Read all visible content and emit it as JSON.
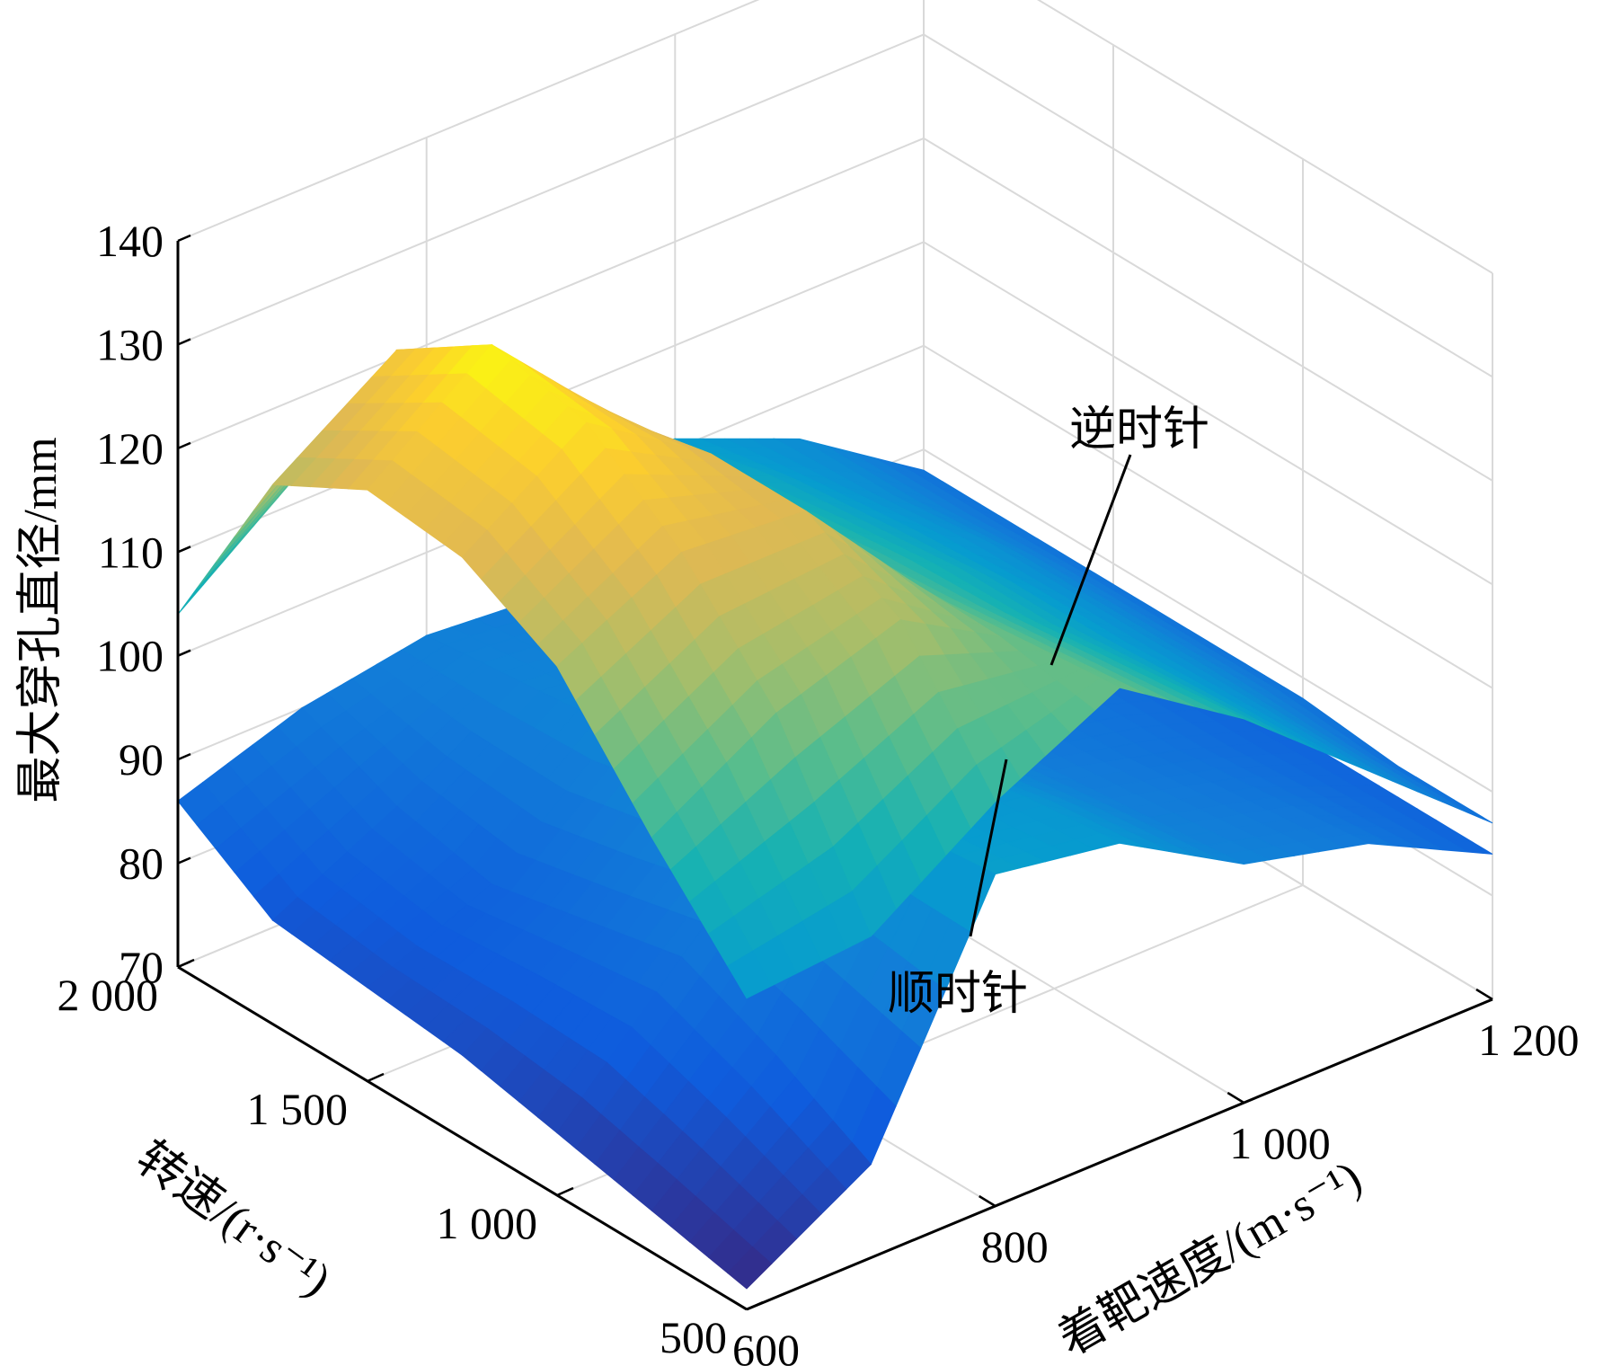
{
  "chart_data": {
    "type": "surface",
    "title": "",
    "zlabel": "最大穿孔直径/mm",
    "xlabel": "着靶速度/(m·s⁻¹)",
    "ylabel": "转速/(r·s⁻¹)",
    "xlim": [
      600,
      1200
    ],
    "ylim": [
      500,
      2000
    ],
    "zlim": [
      70,
      140
    ],
    "x_ticks": [
      600,
      800,
      1000,
      1200
    ],
    "x_tick_labels": [
      "600",
      "800",
      "1 000",
      "1 200"
    ],
    "y_ticks": [
      500,
      1000,
      1500,
      2000
    ],
    "y_tick_labels": [
      "500",
      "1 000",
      "1 500",
      "2 000"
    ],
    "z_ticks": [
      70,
      80,
      90,
      100,
      110,
      120,
      130,
      140
    ],
    "z_tick_labels": [
      "70",
      "80",
      "90",
      "100",
      "110",
      "120",
      "130",
      "140"
    ],
    "grid": true,
    "colormap": "parula",
    "colors": {
      "low": "#352a87",
      "mid": "#26b5a6",
      "high": "#f9e21b",
      "grid": "#d9d9d9",
      "axis": "#000000"
    },
    "x": [
      600,
      700,
      800,
      900,
      1000,
      1100,
      1200
    ],
    "y": [
      500,
      750,
      1000,
      1250,
      1500,
      1750,
      2000
    ],
    "series": [
      {
        "name": "逆时针",
        "z": [
          [
            100,
            101,
            109,
            115,
            107,
            97,
            87
          ],
          [
            110,
            117,
            121,
            114,
            106,
            97,
            87
          ],
          [
            121,
            127,
            126,
            113,
            105,
            97,
            88
          ],
          [
            126,
            134,
            126,
            112,
            105,
            97,
            88
          ],
          [
            127,
            136,
            124,
            111,
            104,
            97,
            88
          ],
          [
            122,
            130,
            118,
            108,
            103,
            96,
            88
          ],
          [
            104,
            113,
            108,
            103,
            101,
            96,
            88
          ]
        ]
      },
      {
        "name": "顺时针",
        "z": [
          [
            72,
            79,
            102,
            100,
            93,
            90,
            84
          ],
          [
            74,
            84,
            101,
            99,
            92,
            89,
            84
          ],
          [
            76,
            88,
            99,
            97,
            91,
            88,
            84
          ],
          [
            78,
            86,
            96,
            95,
            90,
            88,
            84
          ],
          [
            79,
            84,
            94,
            93,
            90,
            87,
            84
          ],
          [
            80,
            86,
            93,
            92,
            89,
            87,
            84
          ],
          [
            86,
            90,
            92,
            91,
            89,
            87,
            84
          ]
        ]
      }
    ],
    "annotations": [
      {
        "text": "逆时针",
        "series": 0,
        "at": [
          900,
          1500
        ]
      },
      {
        "text": "顺时针",
        "series": 1,
        "at": [
          900,
          1500
        ]
      }
    ]
  }
}
